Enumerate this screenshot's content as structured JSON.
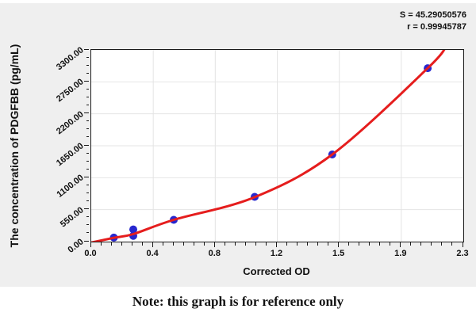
{
  "stats": {
    "s_label": "S = 45.29050576",
    "r_label": "r = 0.99945787"
  },
  "note": "Note: this graph is for reference only",
  "chart_data": {
    "type": "scatter",
    "xlabel": "Corrected OD",
    "ylabel": "The concentration of PDGFBB (pg/mL)",
    "xlim": [
      0,
      2.3
    ],
    "ylim": [
      0,
      3300
    ],
    "x_tick_labels": [
      "0.0",
      "0.4",
      "0.8",
      "1.2",
      "1.5",
      "1.9",
      "2.3"
    ],
    "y_tick_labels": [
      "0.00",
      "550.00",
      "1100.00",
      "1650.00",
      "2200.00",
      "2750.00",
      "3300.00"
    ],
    "grid": true,
    "legend": "none",
    "point_color": "#2727cf",
    "points": [
      {
        "x": 0.14,
        "y": 70
      },
      {
        "x": 0.26,
        "y": 100
      },
      {
        "x": 0.26,
        "y": 210
      },
      {
        "x": 0.51,
        "y": 375
      },
      {
        "x": 1.01,
        "y": 770
      },
      {
        "x": 1.49,
        "y": 1500
      },
      {
        "x": 2.08,
        "y": 2985
      }
    ],
    "fit": {
      "S": 45.29050576,
      "r": 0.99945787,
      "curve_color": "#e51d1d",
      "curve_points": [
        {
          "x": 0.0,
          "y": -15
        },
        {
          "x": 0.14,
          "y": 65
        },
        {
          "x": 0.26,
          "y": 130
        },
        {
          "x": 0.51,
          "y": 375
        },
        {
          "x": 1.01,
          "y": 765
        },
        {
          "x": 1.49,
          "y": 1500
        },
        {
          "x": 2.08,
          "y": 2985
        },
        {
          "x": 2.2,
          "y": 3390
        }
      ]
    }
  }
}
